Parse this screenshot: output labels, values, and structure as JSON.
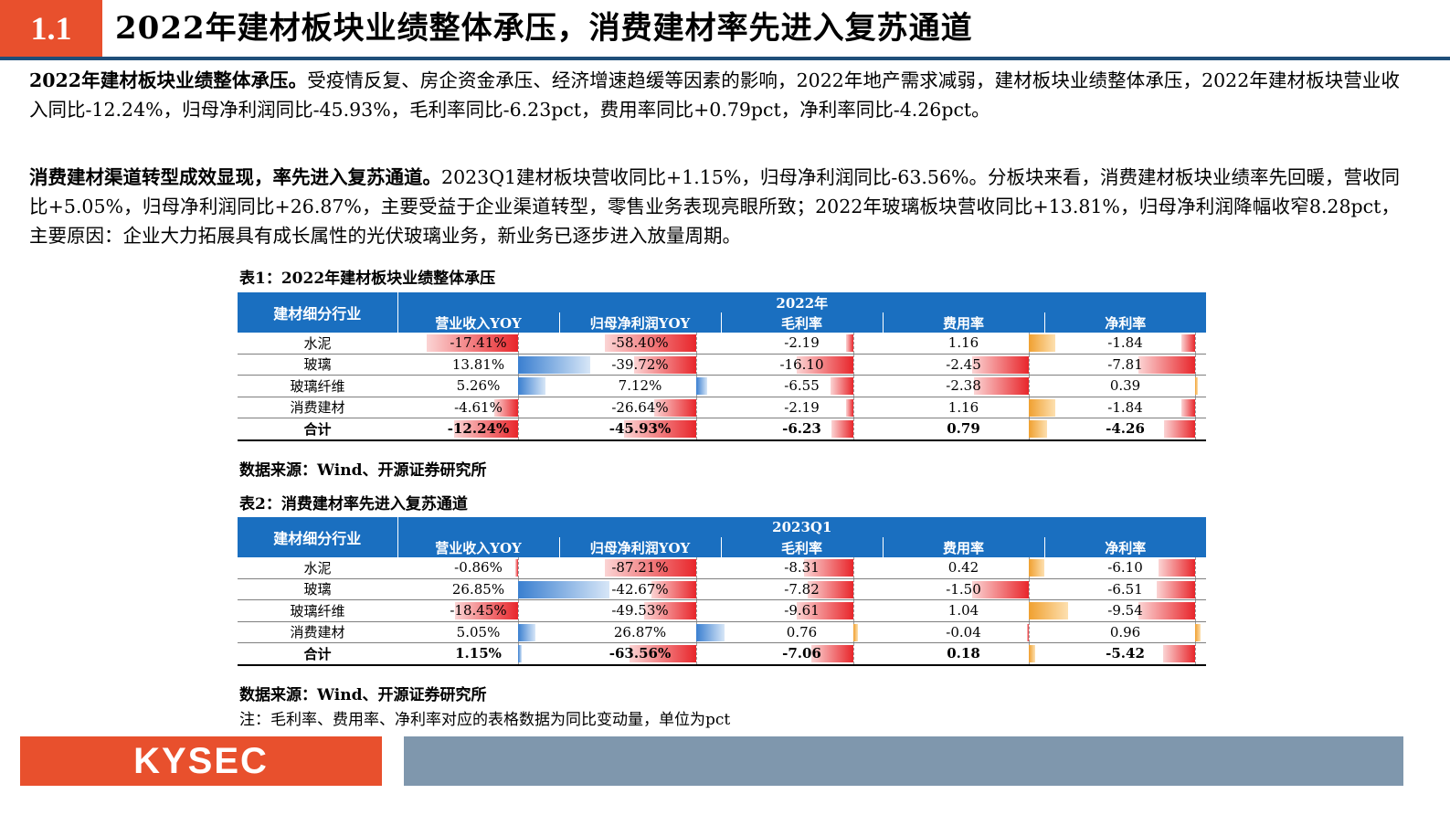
{
  "header": {
    "section_number": "1.1",
    "title": "2022年建材板块业绩整体承压，消费建材率先进入复苏通道"
  },
  "para1": {
    "lead": "2022年建材板块业绩整体承压。",
    "text": "受疫情反复、房企资金承压、经济增速趋缓等因素的影响，2022年地产需求减弱，建材板块业绩整体承压，2022年建材板块营业收入同比-12.24%，归母净利润同比-45.93%，毛利率同比-6.23pct，费用率同比+0.79pct，净利率同比-4.26pct。"
  },
  "para2": {
    "lead": "消费建材渠道转型成效显现，率先进入复苏通道。",
    "text": "2023Q1建材板块营收同比+1.15%，归母净利润同比-63.56%。分板块来看，消费建材板块业绩率先回暖，营收同比+5.05%，归母净利润同比+26.87%，主要受益于企业渠道转型，零售业务表现亮眼所致；2022年玻璃板块营收同比+13.81%，归母净利润降幅收窄8.28pct，主要原因：企业大力拓展具有成长属性的光伏玻璃业务，新业务已逐步进入放量周期。"
  },
  "table1": {
    "caption": "表1：2022年建材板块业绩整体承压",
    "industry_header": "建材细分行业",
    "period": "2022年",
    "columns": [
      "营业收入YOY",
      "归母净利润YOY",
      "毛利率",
      "费用率",
      "净利率"
    ],
    "rows": [
      {
        "name": "水泥",
        "values": [
          "-17.41%",
          "-58.40%",
          "-2.19",
          "1.16",
          "-1.84"
        ]
      },
      {
        "name": "玻璃",
        "values": [
          "13.81%",
          "-39.72%",
          "-16.10",
          "-2.45",
          "-7.81"
        ]
      },
      {
        "name": "玻璃纤维",
        "values": [
          "5.26%",
          "7.12%",
          "-6.55",
          "-2.38",
          "0.39"
        ]
      },
      {
        "name": "消费建材",
        "values": [
          "-4.61%",
          "-26.64%",
          "-2.19",
          "1.16",
          "-1.84"
        ]
      },
      {
        "name": "合计",
        "values": [
          "-12.24%",
          "-45.93%",
          "-6.23",
          "0.79",
          "-4.26"
        ]
      }
    ],
    "source": "数据来源：Wind、开源证券研究所"
  },
  "table2": {
    "caption": "表2：消费建材率先进入复苏通道",
    "industry_header": "建材细分行业",
    "period": "2023Q1",
    "columns": [
      "营业收入YOY",
      "归母净利润YOY",
      "毛利率",
      "费用率",
      "净利率"
    ],
    "rows": [
      {
        "name": "水泥",
        "values": [
          "-0.86%",
          "-87.21%",
          "-8.31",
          "0.42",
          "-6.10"
        ]
      },
      {
        "name": "玻璃",
        "values": [
          "26.85%",
          "-42.67%",
          "-7.82",
          "-1.50",
          "-6.51"
        ]
      },
      {
        "name": "玻璃纤维",
        "values": [
          "-18.45%",
          "-49.53%",
          "-9.61",
          "1.04",
          "-9.54"
        ]
      },
      {
        "name": "消费建材",
        "values": [
          "5.05%",
          "26.87%",
          "0.76",
          "-0.04",
          "0.96"
        ]
      },
      {
        "name": "合计",
        "values": [
          "1.15%",
          "-63.56%",
          "-7.06",
          "0.18",
          "-5.42"
        ]
      }
    ],
    "source": "数据来源：Wind、开源证券研究所",
    "note": "注：毛利率、费用率、净利率对应的表格数据为同比变动量，单位为pct"
  },
  "footer": {
    "logo": "KYSEC"
  },
  "colors": {
    "accent": "#e8502d",
    "header_blue": "#1a6fc0",
    "footer_bar": "#7f97ad",
    "negative_bar": "#e8262b",
    "positive_bar": "#3a7fd0",
    "rate_bar": "#f0a030"
  }
}
